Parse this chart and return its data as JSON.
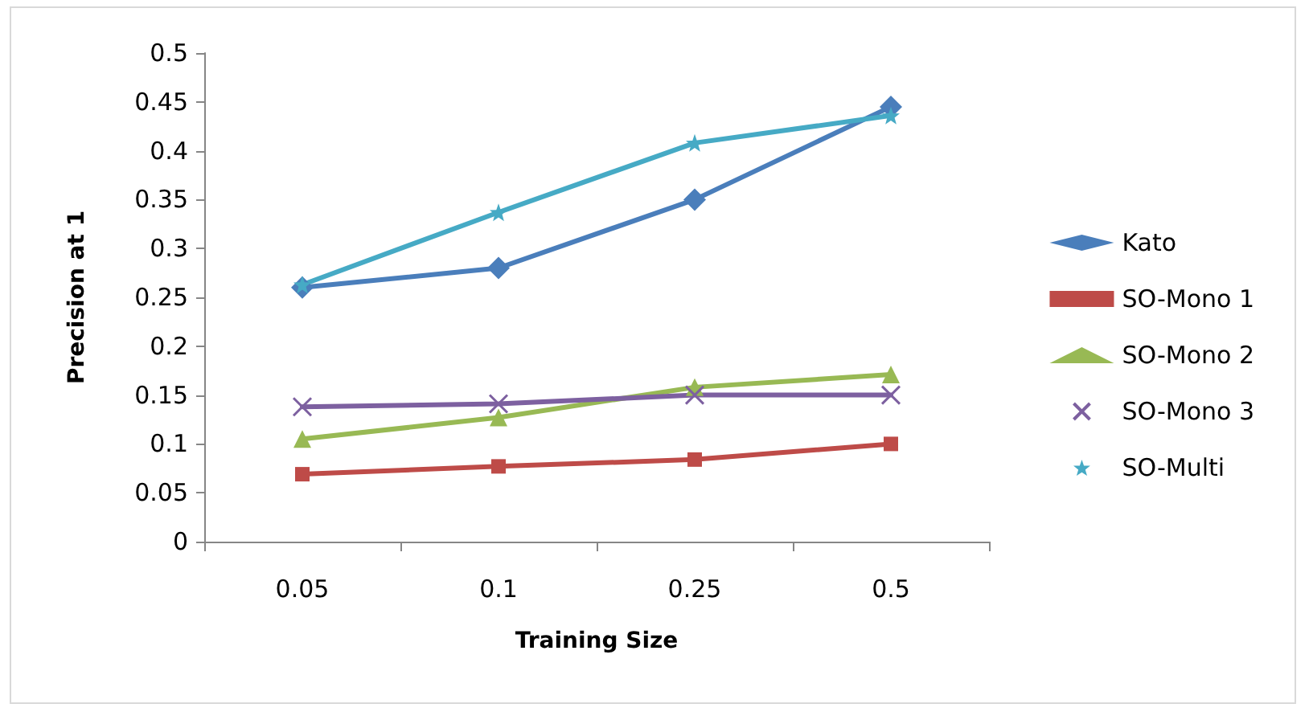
{
  "chart_data": {
    "type": "line",
    "xlabel": "Training Size",
    "ylabel": "Precision at 1",
    "categories": [
      "0.05",
      "0.1",
      "0.25",
      "0.5"
    ],
    "series": [
      {
        "name": "Kato",
        "color": "#4a7ebb",
        "marker": "diamond",
        "values": [
          0.26,
          0.28,
          0.35,
          0.445
        ]
      },
      {
        "name": "SO-Mono 1",
        "color": "#be4b48",
        "marker": "square",
        "values": [
          0.069,
          0.077,
          0.084,
          0.1
        ]
      },
      {
        "name": "SO-Mono 2",
        "color": "#98b954",
        "marker": "triangle",
        "values": [
          0.105,
          0.127,
          0.158,
          0.171
        ]
      },
      {
        "name": "SO-Mono 3",
        "color": "#7d60a0",
        "marker": "cross",
        "values": [
          0.138,
          0.141,
          0.15,
          0.15
        ]
      },
      {
        "name": "SO-Multi",
        "color": "#46aac5",
        "marker": "star",
        "values": [
          0.263,
          0.337,
          0.408,
          0.436
        ]
      }
    ],
    "ylim": [
      0,
      0.5
    ],
    "yticks": [
      0,
      0.05,
      0.1,
      0.15,
      0.2,
      0.25,
      0.3,
      0.35,
      0.4,
      0.45,
      0.5
    ],
    "grid": false,
    "legend": "right",
    "line_style": "solid"
  }
}
